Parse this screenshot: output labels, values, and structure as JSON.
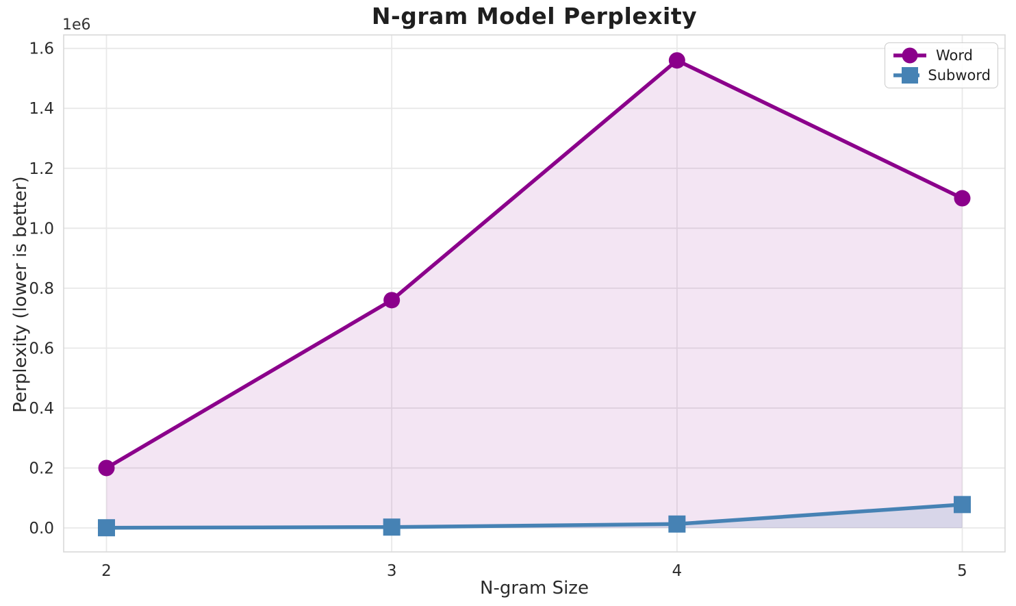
{
  "figure_title": "N-gram Model Perplexity",
  "chart_data": {
    "type": "line",
    "title": "N-gram Model Perplexity",
    "xlabel": "N-gram Size",
    "ylabel": "Perplexity (lower is better)",
    "y_scale_offset_label": "1e6",
    "x": [
      2,
      3,
      4,
      5
    ],
    "series": [
      {
        "name": "Word",
        "color": "#8B008B",
        "marker": "circle",
        "values": [
          200000,
          760000,
          1560000,
          1100000
        ],
        "fill_to_zero": true,
        "fill_alpha": 0.1
      },
      {
        "name": "Subword",
        "color": "#4682B4",
        "marker": "square",
        "values": [
          600,
          2800,
          13000,
          78000
        ],
        "fill_to_zero": true,
        "fill_alpha": 0.15
      }
    ],
    "xticks": [
      2,
      3,
      4,
      5
    ],
    "xtick_labels": [
      "2",
      "3",
      "4",
      "5"
    ],
    "yticks": [
      0,
      200000,
      400000,
      600000,
      800000,
      1000000,
      1200000,
      1400000,
      1600000
    ],
    "ytick_labels": [
      "0.0",
      "0.2",
      "0.4",
      "0.6",
      "0.8",
      "1.0",
      "1.2",
      "1.4",
      "1.6"
    ],
    "xlim": [
      1.85,
      5.15
    ],
    "ylim": [
      -80000,
      1645000
    ],
    "grid": true,
    "legend_position": "upper right"
  },
  "colors": {
    "word": "#8B008B",
    "subword": "#4682B4",
    "grid": "#e8e8e8",
    "spine": "#d9d9d9",
    "tick_text": "#2b2b2b",
    "title_text": "#1f1f1f",
    "background": "#ffffff"
  }
}
